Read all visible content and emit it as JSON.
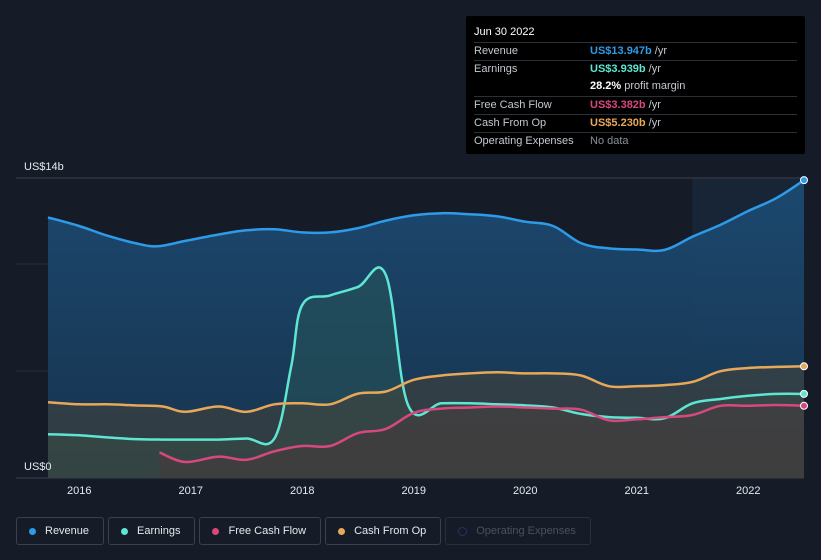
{
  "tooltip": {
    "date": "Jun 30 2022",
    "rows": [
      {
        "label": "Revenue",
        "value": "US$13.947b",
        "unit": "/yr",
        "color": "#2d9be8"
      },
      {
        "label": "Earnings",
        "value": "US$3.939b",
        "unit": "/yr",
        "color": "#5ee6d2"
      },
      {
        "label": "",
        "value": "28.2%",
        "unit": "profit margin",
        "color": "#ffffff"
      },
      {
        "label": "Free Cash Flow",
        "value": "US$3.382b",
        "unit": "/yr",
        "color": "#d8487c"
      },
      {
        "label": "Cash From Op",
        "value": "US$5.230b",
        "unit": "/yr",
        "color": "#e8a85a"
      },
      {
        "label": "Operating Expenses",
        "value": "No data",
        "unit": "",
        "color": "#8a909a"
      }
    ]
  },
  "legend": [
    {
      "label": "Revenue",
      "color": "#2d9be8",
      "enabled": true
    },
    {
      "label": "Earnings",
      "color": "#5ee6d2",
      "enabled": true
    },
    {
      "label": "Free Cash Flow",
      "color": "#d8487c",
      "enabled": true
    },
    {
      "label": "Cash From Op",
      "color": "#e8a85a",
      "enabled": true
    },
    {
      "label": "Operating Expenses",
      "color": "#2b3160",
      "enabled": false
    }
  ],
  "chart_data": {
    "type": "area",
    "ylabel_top": "US$14b",
    "ylabel_bottom": "US$0",
    "ylim": [
      0,
      14
    ],
    "xlim": [
      2015.72,
      2022.5
    ],
    "x_ticks": [
      2016,
      2017,
      2018,
      2019,
      2020,
      2021,
      2022
    ],
    "x_tick_labels": [
      "2016",
      "2017",
      "2018",
      "2019",
      "2020",
      "2021",
      "2022"
    ],
    "highlight_start": 2021.5,
    "series": [
      {
        "name": "Revenue",
        "color": "#2d9be8",
        "points": [
          [
            2015.72,
            12.2
          ],
          [
            2016.0,
            11.8
          ],
          [
            2016.25,
            11.35
          ],
          [
            2016.5,
            11.0
          ],
          [
            2016.7,
            10.85
          ],
          [
            2016.95,
            11.1
          ],
          [
            2017.25,
            11.4
          ],
          [
            2017.5,
            11.6
          ],
          [
            2017.75,
            11.65
          ],
          [
            2018.0,
            11.5
          ],
          [
            2018.25,
            11.5
          ],
          [
            2018.5,
            11.7
          ],
          [
            2018.75,
            12.05
          ],
          [
            2019.0,
            12.3
          ],
          [
            2019.25,
            12.4
          ],
          [
            2019.5,
            12.35
          ],
          [
            2019.75,
            12.25
          ],
          [
            2020.0,
            12.0
          ],
          [
            2020.25,
            11.8
          ],
          [
            2020.5,
            11.0
          ],
          [
            2020.75,
            10.75
          ],
          [
            2021.0,
            10.7
          ],
          [
            2021.25,
            10.68
          ],
          [
            2021.5,
            11.3
          ],
          [
            2021.75,
            11.85
          ],
          [
            2022.0,
            12.5
          ],
          [
            2022.25,
            13.1
          ],
          [
            2022.5,
            13.947
          ]
        ]
      },
      {
        "name": "Earnings",
        "color": "#5ee6d2",
        "points": [
          [
            2015.72,
            2.05
          ],
          [
            2016.0,
            2.0
          ],
          [
            2016.25,
            1.9
          ],
          [
            2016.5,
            1.82
          ],
          [
            2016.75,
            1.8
          ],
          [
            2017.0,
            1.8
          ],
          [
            2017.25,
            1.8
          ],
          [
            2017.5,
            1.85
          ],
          [
            2017.75,
            1.85
          ],
          [
            2017.9,
            5.2
          ],
          [
            2018.0,
            8.1
          ],
          [
            2018.25,
            8.55
          ],
          [
            2018.5,
            8.95
          ],
          [
            2018.75,
            9.5
          ],
          [
            2018.95,
            3.4
          ],
          [
            2019.25,
            3.5
          ],
          [
            2019.5,
            3.5
          ],
          [
            2019.75,
            3.45
          ],
          [
            2020.0,
            3.4
          ],
          [
            2020.25,
            3.3
          ],
          [
            2020.5,
            3.0
          ],
          [
            2020.75,
            2.85
          ],
          [
            2021.0,
            2.82
          ],
          [
            2021.25,
            2.8
          ],
          [
            2021.5,
            3.5
          ],
          [
            2021.75,
            3.7
          ],
          [
            2022.0,
            3.85
          ],
          [
            2022.25,
            3.94
          ],
          [
            2022.5,
            3.939
          ]
        ]
      },
      {
        "name": "Free Cash Flow",
        "color": "#d8487c",
        "points": [
          [
            2016.72,
            1.2
          ],
          [
            2016.95,
            0.75
          ],
          [
            2017.25,
            1.0
          ],
          [
            2017.5,
            0.85
          ],
          [
            2017.75,
            1.25
          ],
          [
            2018.0,
            1.5
          ],
          [
            2018.25,
            1.5
          ],
          [
            2018.5,
            2.1
          ],
          [
            2018.75,
            2.3
          ],
          [
            2019.0,
            3.05
          ],
          [
            2019.25,
            3.25
          ],
          [
            2019.5,
            3.3
          ],
          [
            2019.75,
            3.35
          ],
          [
            2020.0,
            3.3
          ],
          [
            2020.25,
            3.25
          ],
          [
            2020.5,
            3.2
          ],
          [
            2020.75,
            2.7
          ],
          [
            2021.0,
            2.75
          ],
          [
            2021.25,
            2.85
          ],
          [
            2021.5,
            2.95
          ],
          [
            2021.75,
            3.38
          ],
          [
            2022.0,
            3.38
          ],
          [
            2022.25,
            3.42
          ],
          [
            2022.5,
            3.382
          ]
        ]
      },
      {
        "name": "Cash From Op",
        "color": "#e8a85a",
        "points": [
          [
            2015.72,
            3.55
          ],
          [
            2016.0,
            3.45
          ],
          [
            2016.25,
            3.45
          ],
          [
            2016.5,
            3.4
          ],
          [
            2016.75,
            3.35
          ],
          [
            2016.95,
            3.1
          ],
          [
            2017.25,
            3.35
          ],
          [
            2017.5,
            3.1
          ],
          [
            2017.75,
            3.45
          ],
          [
            2018.0,
            3.5
          ],
          [
            2018.25,
            3.45
          ],
          [
            2018.5,
            3.95
          ],
          [
            2018.75,
            4.05
          ],
          [
            2019.0,
            4.6
          ],
          [
            2019.25,
            4.8
          ],
          [
            2019.5,
            4.9
          ],
          [
            2019.75,
            4.95
          ],
          [
            2020.0,
            4.9
          ],
          [
            2020.25,
            4.9
          ],
          [
            2020.5,
            4.8
          ],
          [
            2020.75,
            4.3
          ],
          [
            2021.0,
            4.3
          ],
          [
            2021.25,
            4.35
          ],
          [
            2021.5,
            4.5
          ],
          [
            2021.75,
            5.0
          ],
          [
            2022.0,
            5.15
          ],
          [
            2022.25,
            5.2
          ],
          [
            2022.5,
            5.23
          ]
        ]
      }
    ]
  }
}
